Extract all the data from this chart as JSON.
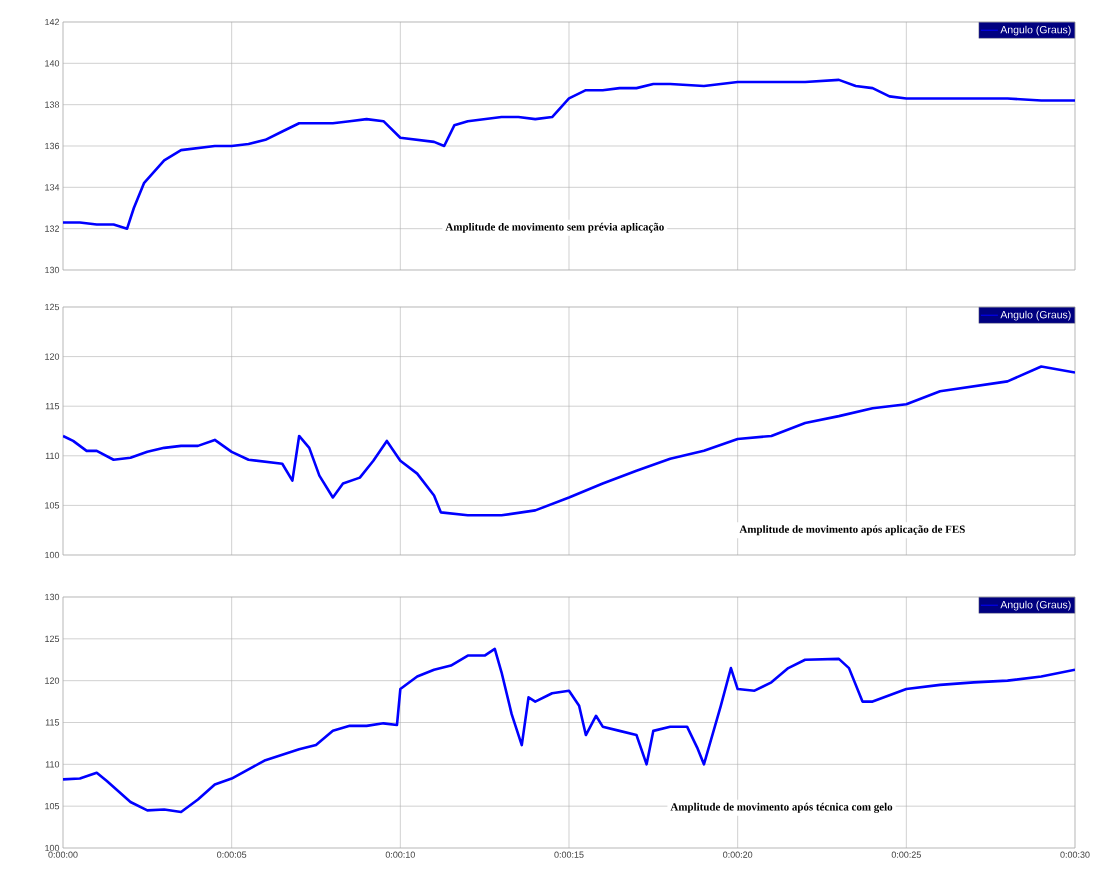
{
  "chart_data": [
    {
      "type": "line",
      "ylim": [
        130,
        142
      ],
      "yticks": [
        130,
        132,
        134,
        136,
        138,
        140,
        142
      ],
      "xlim": [
        0,
        30
      ],
      "xticks": [
        0,
        5,
        10,
        15,
        20,
        25,
        30
      ],
      "tick_labels": "y",
      "grid": true,
      "legend": "top right",
      "annotations": [
        "Amplitude de movimento sem prévia aplicação"
      ],
      "x": [
        0,
        0.5,
        1,
        1.5,
        1.9,
        2.1,
        2.4,
        3,
        3.5,
        4,
        4.5,
        5,
        5.5,
        6,
        6.5,
        7,
        7.5,
        8,
        8.5,
        9,
        9.5,
        10,
        10.5,
        11,
        11.3,
        11.6,
        12,
        12.5,
        13,
        13.5,
        14,
        14.5,
        15,
        15.5,
        16,
        16.5,
        17,
        17.5,
        18,
        19,
        20,
        21,
        22,
        23,
        23.5,
        24,
        24.5,
        25,
        26,
        27,
        28,
        29,
        30
      ],
      "series": [
        {
          "name": "Angulo (Graus)",
          "color": "#0000ff",
          "values": [
            132.3,
            132.3,
            132.2,
            132.2,
            132.0,
            133.0,
            134.2,
            135.3,
            135.8,
            135.9,
            136.0,
            136.0,
            136.1,
            136.3,
            136.7,
            137.1,
            137.1,
            137.1,
            137.2,
            137.3,
            137.2,
            136.4,
            136.3,
            136.2,
            136.0,
            137.0,
            137.2,
            137.3,
            137.4,
            137.4,
            137.3,
            137.4,
            138.3,
            138.7,
            138.7,
            138.8,
            138.8,
            139.0,
            139.0,
            138.9,
            139.1,
            139.1,
            139.1,
            139.2,
            138.9,
            138.8,
            138.4,
            138.3,
            138.3,
            138.3,
            138.3,
            138.2,
            138.2
          ]
        }
      ]
    },
    {
      "type": "line",
      "ylim": [
        100,
        125
      ],
      "yticks": [
        100,
        105,
        110,
        115,
        120,
        125
      ],
      "xlim": [
        0,
        30
      ],
      "xticks": [
        0,
        5,
        10,
        15,
        20,
        25,
        30
      ],
      "tick_labels": "y",
      "grid": true,
      "legend": "top right",
      "annotations": [
        "Amplitude de movimento após aplicação de FES"
      ],
      "x": [
        0,
        0.3,
        0.7,
        1,
        1.5,
        2,
        2.5,
        3,
        3.5,
        4,
        4.5,
        5,
        5.5,
        6,
        6.5,
        6.8,
        7,
        7.3,
        7.6,
        8,
        8.3,
        8.8,
        9.2,
        9.6,
        10,
        10.5,
        11,
        11.2,
        12,
        13,
        14,
        15,
        16,
        17,
        18,
        19,
        20,
        21,
        22,
        23,
        24,
        25,
        26,
        27,
        28,
        29,
        30
      ],
      "series": [
        {
          "name": "Angulo (Graus)",
          "color": "#0000ff",
          "values": [
            112.0,
            111.5,
            110.5,
            110.5,
            109.6,
            109.8,
            110.4,
            110.8,
            111.0,
            111.0,
            111.6,
            110.4,
            109.6,
            109.4,
            109.2,
            107.5,
            112.0,
            110.8,
            108.0,
            105.8,
            107.2,
            107.8,
            109.5,
            111.5,
            109.5,
            108.2,
            106.0,
            104.3,
            104.0,
            104.0,
            104.5,
            105.8,
            107.2,
            108.5,
            109.7,
            110.5,
            111.7,
            112.0,
            113.3,
            114.0,
            114.8,
            115.2,
            116.5,
            117.0,
            117.5,
            119.0,
            118.4
          ]
        }
      ]
    },
    {
      "type": "line",
      "ylim": [
        100,
        130
      ],
      "yticks": [
        100,
        105,
        110,
        115,
        120,
        125,
        130
      ],
      "xlim": [
        0,
        30
      ],
      "xticks": [
        {
          "value": 0,
          "label": "0:00:00"
        },
        {
          "value": 5,
          "label": "0:00:05"
        },
        {
          "value": 10,
          "label": "0:00:10"
        },
        {
          "value": 15,
          "label": "0:00:15"
        },
        {
          "value": 20,
          "label": "0:00:20"
        },
        {
          "value": 25,
          "label": "0:00:25"
        },
        {
          "value": 30,
          "label": "0:00:30"
        }
      ],
      "grid": true,
      "legend": "top right",
      "annotations": [
        "Amplitude de movimento após técnica com gelo"
      ],
      "x": [
        0,
        0.5,
        1,
        1.3,
        2,
        2.5,
        3,
        3.5,
        4,
        4.5,
        5,
        6,
        7,
        7.5,
        8,
        8.5,
        9,
        9.5,
        9.9,
        10,
        10.5,
        11,
        11.5,
        12,
        12.5,
        12.8,
        13,
        13.3,
        13.6,
        13.8,
        14,
        14.5,
        15,
        15.3,
        15.5,
        15.8,
        16,
        16.5,
        17,
        17.3,
        17.5,
        18,
        18.5,
        18.8,
        19,
        19.5,
        19.8,
        20,
        20.5,
        21,
        21.5,
        22,
        23,
        23.3,
        23.7,
        24,
        25,
        26,
        27,
        28,
        29,
        30
      ],
      "series": [
        {
          "name": "Angulo (Graus)",
          "color": "#0000ff",
          "values": [
            108.2,
            108.3,
            109.0,
            108.0,
            105.5,
            104.5,
            104.6,
            104.3,
            105.8,
            107.6,
            108.3,
            110.5,
            111.8,
            112.3,
            114.0,
            114.6,
            114.6,
            114.9,
            114.7,
            119.0,
            120.5,
            121.3,
            121.8,
            123.0,
            123.0,
            123.8,
            121.0,
            116.0,
            112.3,
            118.0,
            117.5,
            118.5,
            118.8,
            117.0,
            113.5,
            115.8,
            114.5,
            114.0,
            113.5,
            110.0,
            114.0,
            114.5,
            114.5,
            112.0,
            110.0,
            117.0,
            121.5,
            119.0,
            118.8,
            119.8,
            121.5,
            122.5,
            122.6,
            121.5,
            117.5,
            117.5,
            119.0,
            119.5,
            119.8,
            120.0,
            120.5,
            121.3
          ]
        }
      ]
    }
  ]
}
